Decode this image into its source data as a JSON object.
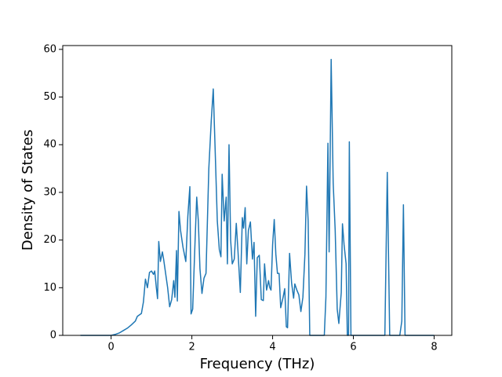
{
  "chart_data": {
    "type": "line",
    "x_label": "Frequency (THz)",
    "y_label": "Density of States",
    "x": [
      -0.76,
      0,
      0.1,
      0.2,
      0.3,
      0.4,
      0.5,
      0.6,
      0.65,
      0.75,
      0.8,
      0.85,
      0.9,
      0.95,
      1.0,
      1.05,
      1.08,
      1.12,
      1.15,
      1.18,
      1.22,
      1.27,
      1.3,
      1.35,
      1.4,
      1.45,
      1.5,
      1.55,
      1.58,
      1.62,
      1.64,
      1.68,
      1.72,
      1.78,
      1.85,
      1.9,
      1.95,
      1.98,
      2.02,
      2.08,
      2.12,
      2.16,
      2.2,
      2.25,
      2.3,
      2.35,
      2.42,
      2.48,
      2.53,
      2.58,
      2.63,
      2.68,
      2.72,
      2.75,
      2.8,
      2.85,
      2.88,
      2.92,
      2.96,
      3.0,
      3.05,
      3.1,
      3.14,
      3.2,
      3.25,
      3.28,
      3.32,
      3.36,
      3.4,
      3.45,
      3.5,
      3.54,
      3.58,
      3.62,
      3.67,
      3.72,
      3.77,
      3.8,
      3.85,
      3.9,
      3.93,
      3.96,
      4.0,
      4.04,
      4.08,
      4.12,
      4.16,
      4.2,
      4.26,
      4.3,
      4.34,
      4.37,
      4.42,
      4.47,
      4.52,
      4.55,
      4.6,
      4.65,
      4.7,
      4.75,
      4.8,
      4.84,
      4.88,
      4.92,
      5.28,
      5.32,
      5.37,
      5.4,
      5.45,
      5.5,
      5.55,
      5.6,
      5.64,
      5.7,
      5.73,
      5.77,
      5.82,
      5.85,
      5.88,
      5.9,
      5.94,
      6.78,
      6.84,
      6.9,
      7.15,
      7.2,
      7.24,
      7.28,
      8.0
    ],
    "series": [
      {
        "color": "#1f77b4",
        "values": [
          0,
          0,
          0.2,
          0.5,
          1.0,
          1.5,
          2.2,
          3.0,
          4.0,
          4.6,
          7,
          11.8,
          10,
          13.2,
          13.5,
          12.8,
          13.5,
          10,
          7.7,
          19.7,
          15.5,
          17.5,
          16,
          13,
          10,
          6,
          7.5,
          11.5,
          8,
          17.8,
          7.2,
          26,
          22,
          18.5,
          15.5,
          25,
          31.2,
          4.5,
          5.5,
          20,
          29,
          24,
          14,
          8.8,
          12,
          13,
          35,
          45,
          51.7,
          38,
          24,
          18,
          16.5,
          33.8,
          24,
          29,
          15,
          40,
          20,
          15,
          16,
          23.5,
          18,
          9,
          24.7,
          22.5,
          26.8,
          15,
          22,
          23.8,
          16,
          19.5,
          4,
          16.3,
          16.8,
          7.5,
          7.3,
          15,
          9.5,
          11.5,
          10,
          9.5,
          19,
          24.3,
          17,
          13,
          13,
          5.8,
          8,
          9.8,
          1.8,
          1.6,
          17.2,
          11,
          7.8,
          10.8,
          9.5,
          8.5,
          5,
          8,
          17,
          31.3,
          24,
          0,
          0,
          8,
          40.3,
          17.5,
          57.9,
          32,
          22,
          5.5,
          2.5,
          9,
          23.4,
          19,
          15,
          0,
          0,
          40.6,
          0,
          0,
          34.2,
          0,
          0,
          3,
          27.4,
          0,
          0
        ]
      }
    ],
    "xlim": [
      -1.198,
      8.438
    ],
    "ylim": [
      0,
      60.8
    ],
    "xticks": [
      0,
      2,
      4,
      6,
      8
    ],
    "yticks": [
      0,
      10,
      20,
      30,
      40,
      50,
      60
    ]
  }
}
